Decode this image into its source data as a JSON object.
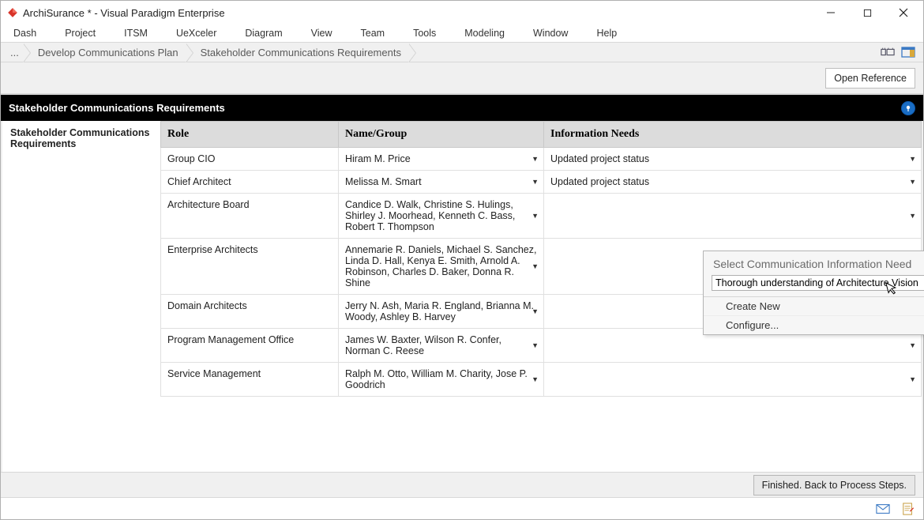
{
  "window": {
    "title": "ArchiSurance * - Visual Paradigm Enterprise"
  },
  "menu": {
    "items": [
      "Dash",
      "Project",
      "ITSM",
      "UeXceler",
      "Diagram",
      "View",
      "Team",
      "Tools",
      "Modeling",
      "Window",
      "Help"
    ]
  },
  "breadcrumb": {
    "root": "...",
    "items": [
      "Develop Communications Plan",
      "Stakeholder Communications Requirements"
    ]
  },
  "toolbar": {
    "open_reference": "Open Reference"
  },
  "section": {
    "title": "Stakeholder Communications Requirements"
  },
  "left_panel": {
    "label": "Stakeholder Communications Requirements"
  },
  "table": {
    "headers": {
      "role": "Role",
      "name": "Name/Group",
      "info": "Information Needs"
    },
    "rows": [
      {
        "role": "Group CIO",
        "name": "Hiram M. Price",
        "info": "Updated project status"
      },
      {
        "role": "Chief Architect",
        "name": "Melissa M. Smart",
        "info": "Updated project status"
      },
      {
        "role": "Architecture Board",
        "name": "Candice D. Walk, Christine S. Hulings, Shirley J. Moorhead, Kenneth C. Bass, Robert T. Thompson",
        "info": ""
      },
      {
        "role": "Enterprise Architects",
        "name": "Annemarie R. Daniels, Michael S. Sanchez, Linda D. Hall, Kenya E. Smith, Arnold A. Robinson, Charles D. Baker, Donna R. Shine",
        "info": ""
      },
      {
        "role": "Domain Architects",
        "name": "Jerry N. Ash, Maria R. England, Brianna M. Woody, Ashley B. Harvey",
        "info": ""
      },
      {
        "role": "Program Management Office",
        "name": "James W. Baxter, Wilson R. Confer, Norman C. Reese",
        "info": ""
      },
      {
        "role": "Service Management",
        "name": "Ralph M. Otto, William M. Charity, Jose P. Goodrich",
        "info": ""
      }
    ]
  },
  "popup": {
    "title": "Select Communication Information Need",
    "input_value": "Thorough understanding of Architecture Vision",
    "options": {
      "create": "Create New",
      "configure": "Configure..."
    }
  },
  "footer": {
    "finish": "Finished. Back to Process Steps."
  },
  "colors": {
    "header_bg": "#000000",
    "header_fg": "#ffffff",
    "table_header_bg": "#dcdcdc",
    "breadcrumb_bg": "#f0f0f0",
    "pin_bg": "#1a6dc4"
  }
}
